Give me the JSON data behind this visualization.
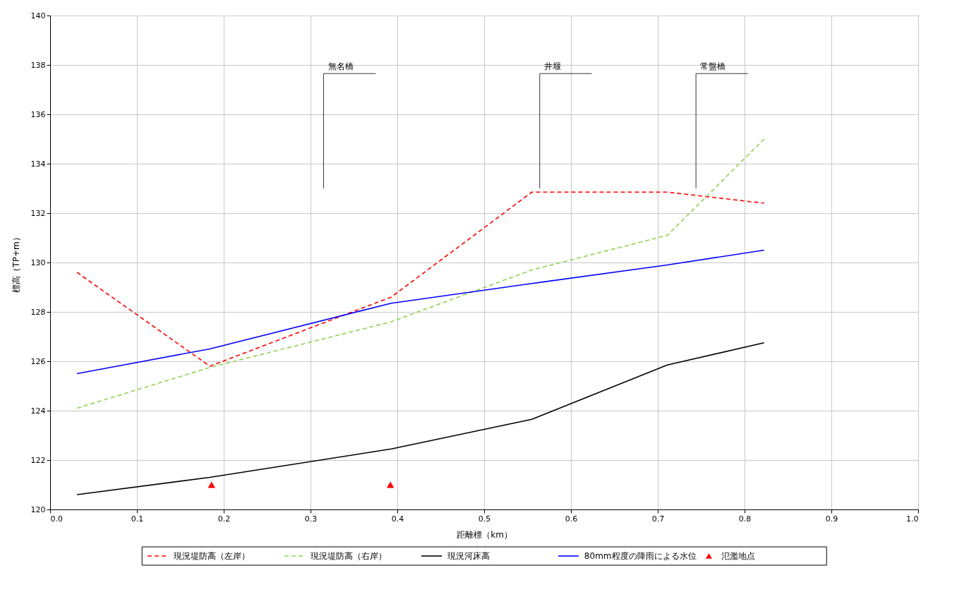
{
  "chart_data": {
    "type": "line",
    "xlabel": "距離標（km）",
    "ylabel": "標高（TP+m）",
    "x": [
      0.031,
      0.184,
      0.393,
      0.555,
      0.711,
      0.8225
    ],
    "series": [
      {
        "name": "現況堤防高（左岸）",
        "color": "#ff0000",
        "line_style": "dashed",
        "values": [
          129.6,
          125.8,
          128.6,
          132.85,
          132.85,
          132.4
        ]
      },
      {
        "name": "現況堤防高（右岸）",
        "color": "#8fd14f",
        "line_style": "dashed",
        "values": [
          124.1,
          125.75,
          127.6,
          129.7,
          131.1,
          135.0
        ]
      },
      {
        "name": "現況河床高",
        "color": "#000000",
        "line_style": "solid",
        "values": [
          120.6,
          121.3,
          122.45,
          123.65,
          125.85,
          126.75
        ]
      },
      {
        "name": "80mm程度の降雨による水位",
        "color": "#0000ff",
        "line_style": "solid",
        "values": [
          125.5,
          126.5,
          128.35,
          129.15,
          129.9,
          130.5
        ]
      },
      {
        "name": "氾濫地点",
        "type": "scatter",
        "marker": "triangle",
        "color": "#ff0000",
        "x": [
          0.186,
          0.392
        ],
        "values": [
          121.0,
          121.0
        ]
      }
    ],
    "xlim": [
      0.0,
      1.0
    ],
    "xticks": [
      {
        "value": 0,
        "label": "0.0"
      },
      0.1,
      0.2,
      0.3,
      0.4,
      0.5,
      0.6,
      0.7,
      0.8,
      0.9,
      {
        "value": 1,
        "label": "1.0"
      }
    ],
    "ylim": [
      120,
      140
    ],
    "yticks": [
      120,
      122,
      124,
      126,
      128,
      130,
      132,
      134,
      136,
      138,
      140
    ],
    "grid": true,
    "legend": "bottom",
    "marker": "none",
    "ref_lines": [
      {
        "axis": "x",
        "value": 0.315,
        "label": "無名橋"
      },
      {
        "axis": "x",
        "value": 0.564,
        "label": "井堰"
      },
      {
        "axis": "x",
        "value": 0.744,
        "label": "常盤橋"
      }
    ]
  }
}
